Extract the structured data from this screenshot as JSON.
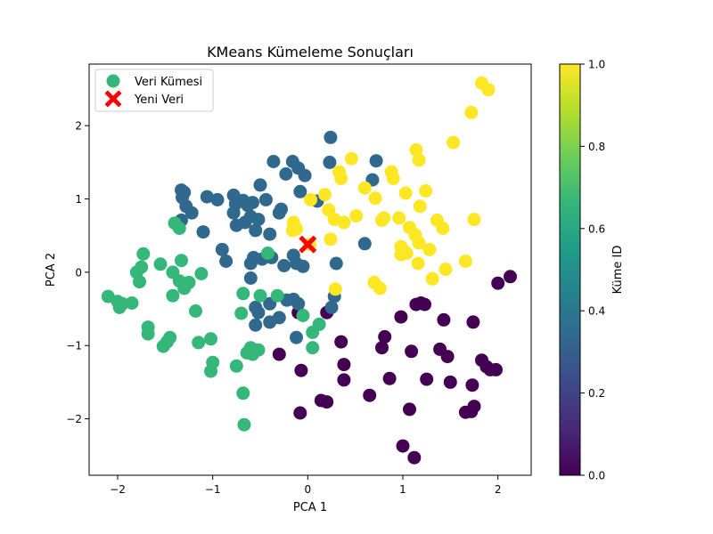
{
  "chart_data": {
    "type": "scatter",
    "title": "KMeans Kümeleme Sonuçları",
    "xlabel": "PCA 1",
    "ylabel": "PCA 2",
    "xlim": [
      -2.3,
      2.35
    ],
    "ylim": [
      -2.77,
      2.84
    ],
    "x_ticks": [
      -2,
      -1,
      0,
      1,
      2
    ],
    "y_ticks": [
      -2,
      -1,
      0,
      1,
      2
    ],
    "grid": false,
    "legend_position": "top-left",
    "legend": {
      "points_label": "Veri Kümesi",
      "new_label": "Yeni Veri"
    },
    "colorbar": {
      "label": "Küme ID",
      "ticks": [
        0.0,
        0.2,
        0.4,
        0.6,
        0.8,
        1.0
      ],
      "tick_labels": [
        "0.0",
        "0.2",
        "0.4",
        "0.6",
        "0.8",
        "1.0"
      ],
      "colormap": [
        "#440154",
        "#482878",
        "#3e4989",
        "#31688e",
        "#26828e",
        "#1f9e89",
        "#35b779",
        "#6ece58",
        "#b5de2b",
        "#fde725"
      ]
    },
    "cluster_colors": {
      "0": "#440154",
      "1": "#31688e",
      "2": "#35b779",
      "3": "#fde725"
    },
    "new_point": {
      "x": 0.0,
      "y": 0.38,
      "color": "#ff0000",
      "marker": "X"
    },
    "series": [
      {
        "cluster": 0,
        "points": [
          [
            0.2,
            -0.55
          ],
          [
            -0.1,
            -0.55
          ],
          [
            -0.3,
            -1.12
          ],
          [
            -0.08,
            -1.92
          ],
          [
            -0.07,
            -1.34
          ],
          [
            0.14,
            -1.75
          ],
          [
            0.2,
            -1.77
          ],
          [
            0.35,
            -0.95
          ],
          [
            0.38,
            -1.26
          ],
          [
            0.38,
            -1.47
          ],
          [
            0.65,
            -1.68
          ],
          [
            0.78,
            -1.03
          ],
          [
            0.81,
            -0.88
          ],
          [
            0.86,
            -1.45
          ],
          [
            0.98,
            -0.61
          ],
          [
            1.07,
            -1.87
          ],
          [
            1.09,
            -1.08
          ],
          [
            1.14,
            -0.44
          ],
          [
            1.19,
            -0.42
          ],
          [
            1.23,
            -0.44
          ],
          [
            1.25,
            -1.46
          ],
          [
            1.0,
            -2.37
          ],
          [
            1.12,
            -2.53
          ],
          [
            1.39,
            -1.05
          ],
          [
            1.43,
            -0.65
          ],
          [
            1.47,
            -1.15
          ],
          [
            1.5,
            -1.5
          ],
          [
            1.66,
            -1.91
          ],
          [
            1.72,
            -1.9
          ],
          [
            1.75,
            -1.83
          ],
          [
            1.74,
            -0.68
          ],
          [
            1.73,
            -1.54
          ],
          [
            1.83,
            -1.2
          ],
          [
            1.88,
            -1.29
          ],
          [
            1.92,
            -1.33
          ],
          [
            1.98,
            -1.33
          ],
          [
            2.0,
            -0.15
          ],
          [
            2.13,
            -0.06
          ]
        ]
      },
      {
        "cluster": 1,
        "points": [
          [
            -1.33,
            1.12
          ],
          [
            -1.3,
            1.09
          ],
          [
            -1.32,
            1.02
          ],
          [
            -1.33,
            0.71
          ],
          [
            -1.28,
            0.9
          ],
          [
            -1.22,
            0.81
          ],
          [
            -1.1,
            0.55
          ],
          [
            -1.06,
            1.03
          ],
          [
            -0.95,
            0.99
          ],
          [
            -0.9,
            0.31
          ],
          [
            -0.86,
            0.15
          ],
          [
            -0.78,
            1.05
          ],
          [
            -0.76,
            0.93
          ],
          [
            -0.78,
            0.81
          ],
          [
            -0.75,
            0.64
          ],
          [
            -0.68,
            0.98
          ],
          [
            -0.66,
            0.68
          ],
          [
            -0.63,
            0.91
          ],
          [
            -0.58,
            0.95
          ],
          [
            -0.6,
            0.76
          ],
          [
            -0.52,
            0.72
          ],
          [
            -0.5,
            1.19
          ],
          [
            -0.44,
            0.99
          ],
          [
            -0.36,
            1.51
          ],
          [
            -0.3,
            0.81
          ],
          [
            -0.28,
            0.86
          ],
          [
            -0.23,
            1.34
          ],
          [
            -0.16,
            1.51
          ],
          [
            -0.1,
            1.42
          ],
          [
            -0.08,
            1.1
          ],
          [
            -0.03,
            1.32
          ],
          [
            0.1,
            0.97
          ],
          [
            0.24,
            1.84
          ],
          [
            0.23,
            1.5
          ],
          [
            -0.4,
            0.52
          ],
          [
            -0.55,
            0.57
          ],
          [
            -0.6,
            0.12
          ],
          [
            -0.57,
            0.2
          ],
          [
            -0.48,
            0.18
          ],
          [
            -0.38,
            0.2
          ],
          [
            -0.25,
            0.09
          ],
          [
            -0.15,
            0.23
          ],
          [
            -0.12,
            0.12
          ],
          [
            -0.05,
            0.08
          ],
          [
            -0.6,
            -0.08
          ],
          [
            -0.55,
            -0.48
          ],
          [
            -0.52,
            -0.55
          ],
          [
            -0.4,
            -0.43
          ],
          [
            -0.3,
            -0.62
          ],
          [
            -0.22,
            -0.38
          ],
          [
            -0.15,
            -0.37
          ],
          [
            -0.1,
            -0.43
          ],
          [
            -0.4,
            -0.68
          ],
          [
            -0.55,
            -0.72
          ],
          [
            -0.12,
            -0.89
          ],
          [
            0.25,
            -0.48
          ],
          [
            0.28,
            -0.33
          ],
          [
            0.3,
            0.12
          ],
          [
            0.6,
            0.39
          ],
          [
            0.68,
            1.26
          ],
          [
            0.72,
            1.52
          ]
        ]
      },
      {
        "cluster": 2,
        "points": [
          [
            -2.1,
            -0.33
          ],
          [
            -2.0,
            -0.4
          ],
          [
            -1.98,
            -0.48
          ],
          [
            -1.95,
            -0.43
          ],
          [
            -1.85,
            -0.42
          ],
          [
            -1.8,
            0.0
          ],
          [
            -1.75,
            0.07
          ],
          [
            -1.77,
            -0.13
          ],
          [
            -1.73,
            0.25
          ],
          [
            -1.68,
            -0.75
          ],
          [
            -1.68,
            -0.84
          ],
          [
            -1.55,
            0.11
          ],
          [
            -1.52,
            -1.01
          ],
          [
            -1.48,
            -0.95
          ],
          [
            -1.45,
            -0.89
          ],
          [
            -1.42,
            -0.32
          ],
          [
            -1.42,
            0.0
          ],
          [
            -1.4,
            0.67
          ],
          [
            -1.35,
            0.6
          ],
          [
            -1.33,
            0.16
          ],
          [
            -1.35,
            -0.12
          ],
          [
            -1.3,
            -0.22
          ],
          [
            -1.27,
            -0.15
          ],
          [
            -1.25,
            -0.14
          ],
          [
            -1.18,
            -0.53
          ],
          [
            -1.15,
            -0.96
          ],
          [
            -1.12,
            -0.02
          ],
          [
            -1.02,
            -0.91
          ],
          [
            -1.02,
            -1.35
          ],
          [
            -1.0,
            -1.23
          ],
          [
            -0.75,
            -1.28
          ],
          [
            -0.7,
            -0.56
          ],
          [
            -0.68,
            -0.29
          ],
          [
            -0.64,
            -1.1
          ],
          [
            -0.6,
            -1.03
          ],
          [
            -0.58,
            -1.12
          ],
          [
            -0.52,
            -1.06
          ],
          [
            -0.5,
            -0.32
          ],
          [
            -0.42,
            0.26
          ],
          [
            -0.32,
            -0.32
          ],
          [
            -0.68,
            -1.65
          ],
          [
            -0.67,
            -2.08
          ],
          [
            -0.05,
            -0.59
          ],
          [
            0.05,
            -1.03
          ],
          [
            0.05,
            -0.82
          ],
          [
            0.12,
            -0.71
          ]
        ]
      },
      {
        "cluster": 3,
        "points": [
          [
            1.83,
            2.58
          ],
          [
            1.9,
            2.49
          ],
          [
            1.72,
            2.18
          ],
          [
            1.53,
            1.77
          ],
          [
            1.14,
            1.67
          ],
          [
            1.17,
            1.53
          ],
          [
            0.46,
            1.55
          ],
          [
            0.33,
            1.37
          ],
          [
            0.35,
            1.28
          ],
          [
            0.6,
            1.15
          ],
          [
            0.71,
            1.01
          ],
          [
            0.88,
            1.37
          ],
          [
            0.9,
            1.28
          ],
          [
            1.03,
            1.08
          ],
          [
            1.24,
            1.11
          ],
          [
            1.18,
            0.9
          ],
          [
            0.8,
            0.74
          ],
          [
            0.78,
            0.71
          ],
          [
            0.96,
            0.74
          ],
          [
            1.07,
            0.61
          ],
          [
            1.13,
            0.51
          ],
          [
            0.98,
            0.35
          ],
          [
            1.01,
            0.29
          ],
          [
            0.98,
            0.24
          ],
          [
            1.04,
            0.26
          ],
          [
            1.17,
            0.4
          ],
          [
            1.28,
            0.31
          ],
          [
            1.16,
            0.12
          ],
          [
            1.36,
            0.71
          ],
          [
            1.42,
            0.6
          ],
          [
            1.45,
            0.04
          ],
          [
            1.31,
            -0.09
          ],
          [
            1.66,
            0.15
          ],
          [
            1.75,
            0.72
          ],
          [
            0.7,
            -0.14
          ],
          [
            0.76,
            -0.22
          ],
          [
            0.29,
            -0.23
          ],
          [
            0.28,
            0.72
          ],
          [
            0.38,
            0.68
          ],
          [
            0.51,
            0.77
          ],
          [
            0.24,
            0.45
          ],
          [
            0.03,
            0.99
          ],
          [
            -0.15,
            0.68
          ],
          [
            -0.12,
            0.59
          ],
          [
            -0.16,
            0.57
          ],
          [
            0.22,
            0.85
          ],
          [
            0.18,
            1.06
          ],
          [
            0.02,
            0.38
          ]
        ]
      }
    ]
  }
}
